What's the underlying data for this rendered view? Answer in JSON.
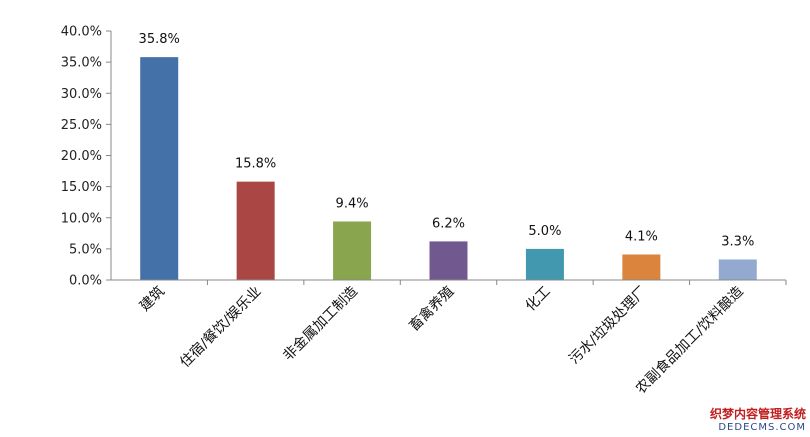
{
  "chart_data": {
    "type": "bar",
    "categories": [
      "建筑",
      "住宿/餐饮/娱乐业",
      "非金属加工制造",
      "畜禽养殖",
      "化工",
      "污水/垃圾处理厂",
      "农副食品加工/饮料酿造"
    ],
    "values": [
      35.8,
      15.8,
      9.4,
      6.2,
      5.0,
      4.1,
      3.3
    ],
    "data_labels": [
      "35.8%",
      "15.8%",
      "9.4%",
      "6.2%",
      "5.0%",
      "4.1%",
      "3.3%"
    ],
    "colors": [
      "#4472a8",
      "#aa4643",
      "#89a54e",
      "#71588f",
      "#4198af",
      "#db843d",
      "#93a9cf"
    ],
    "yticks": [
      "0.0%",
      "5.0%",
      "10.0%",
      "15.0%",
      "20.0%",
      "25.0%",
      "30.0%",
      "35.0%",
      "40.0%"
    ],
    "ylim": [
      0,
      40
    ],
    "title": "",
    "xlabel": "",
    "ylabel": "",
    "grid": false,
    "legend": "none"
  },
  "watermark": {
    "line1": "织梦内容管理系统",
    "line2": "DEDECMS.COM"
  }
}
